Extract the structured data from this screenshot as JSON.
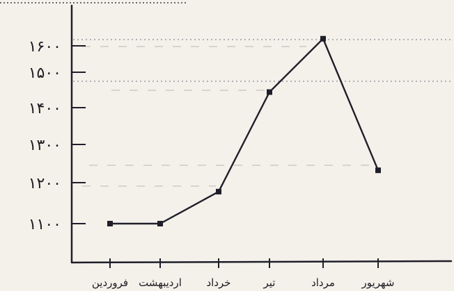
{
  "chart_data": {
    "type": "line",
    "categories": [
      "فروردین",
      "اردیبهشت",
      "خرداد",
      "تیر",
      "مرداد",
      "شهریور"
    ],
    "values": [
      1100,
      1100,
      1190,
      1470,
      1620,
      1250
    ],
    "y_ticks": [
      "۱۱۰۰",
      "۱۲۰۰",
      "۱۳۰۰",
      "۱۴۰۰",
      "۱۵۰۰",
      "۱۶۰۰"
    ],
    "y_tick_values": [
      1100,
      1200,
      1300,
      1400,
      1500,
      1600
    ],
    "ylim": [
      1000,
      1600
    ],
    "grid": "dotted horizontal reference lines",
    "colors": {
      "line": "#1f1f2a",
      "paper": "#f4f1ea",
      "dots": "#8a8a92"
    }
  }
}
